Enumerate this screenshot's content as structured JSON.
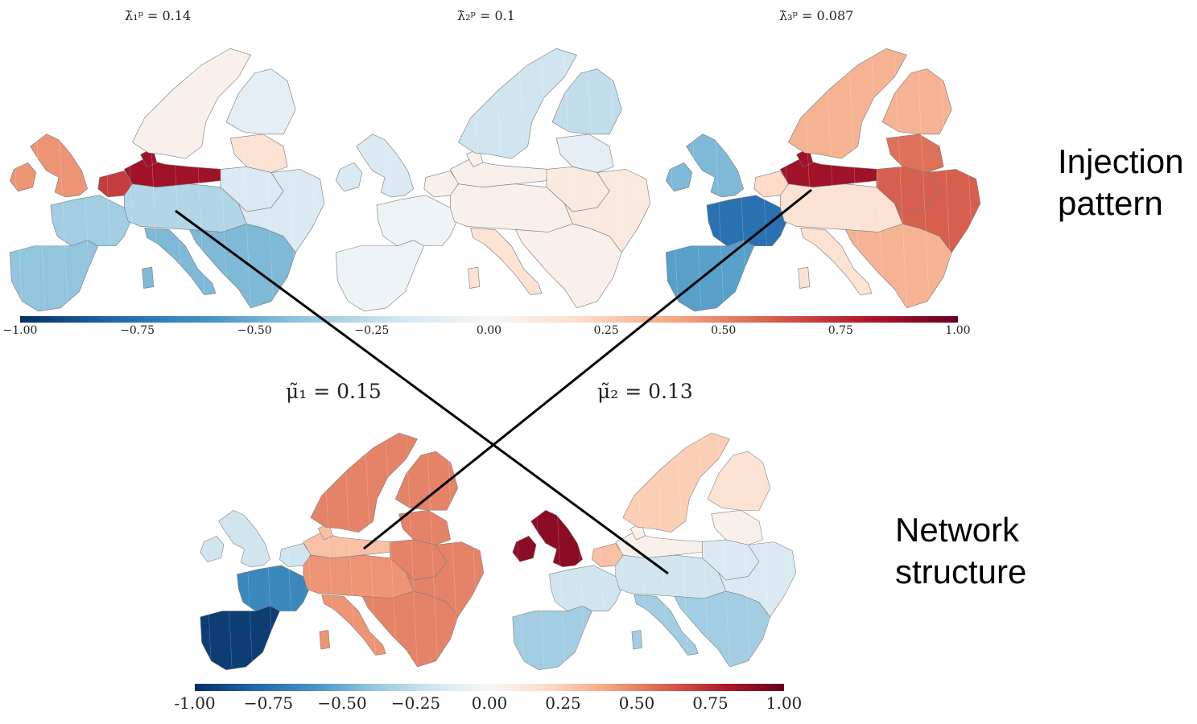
{
  "injection": {
    "title_1": "λ̃₁ᵖ = 0.14",
    "title_2": "λ̃₂ᵖ = 0.1",
    "title_3": "λ̃₃ᵖ = 0.087",
    "side_label_line1": "Injection",
    "side_label_line2": "pattern",
    "colorbar_ticks": [
      "−1.00",
      "−0.75",
      "−0.50",
      "−0.25",
      "0.00",
      "0.25",
      "0.50",
      "0.75",
      "1.00"
    ]
  },
  "network": {
    "title_1": "μ̃₁ = 0.15",
    "title_2": "μ̃₂ = 0.13",
    "side_label_line1": "Network",
    "side_label_line2": "structure",
    "colorbar_ticks": [
      "-1.00",
      "−0.75",
      "−0.50",
      "−0.25",
      "0.00",
      "0.25",
      "0.50",
      "0.75",
      "1.00"
    ]
  },
  "colorscale": {
    "min": -1.0,
    "max": 1.0,
    "stops": [
      "#053061",
      "#2166ac",
      "#4393c3",
      "#92c5de",
      "#d1e5f0",
      "#f7f7f7",
      "#fddbc7",
      "#f4a582",
      "#d6604d",
      "#b2182b",
      "#67001f"
    ]
  },
  "maps": [
    {
      "id": "lambda1",
      "region_values": {
        "iberia": -0.4,
        "france": -0.35,
        "britain": 0.45,
        "benelux": 0.7,
        "north_germany": 0.85,
        "central": -0.3,
        "italy": -0.45,
        "balkans": -0.45,
        "poland": -0.15,
        "scandinavia": 0.05,
        "finland": -0.1,
        "baltics": 0.15
      }
    },
    {
      "id": "lambda2",
      "region_values": {
        "iberia": -0.05,
        "france": -0.05,
        "britain": -0.15,
        "benelux": 0.05,
        "north_germany": 0.05,
        "central": 0.05,
        "italy": 0.15,
        "balkans": 0.05,
        "poland": 0.1,
        "scandinavia": -0.2,
        "finland": -0.25,
        "baltics": -0.1
      }
    },
    {
      "id": "lambda3",
      "region_values": {
        "iberia": -0.55,
        "france": -0.75,
        "britain": -0.45,
        "benelux": 0.2,
        "north_germany": 0.85,
        "central": 0.15,
        "italy": 0.15,
        "balkans": 0.35,
        "poland": 0.6,
        "scandinavia": 0.35,
        "finland": 0.35,
        "baltics": 0.55
      }
    },
    {
      "id": "mu1",
      "region_values": {
        "iberia": -0.95,
        "france": -0.65,
        "britain": -0.2,
        "benelux": -0.2,
        "north_germany": 0.3,
        "central": 0.45,
        "italy": 0.45,
        "balkans": 0.5,
        "poland": 0.5,
        "scandinavia": 0.5,
        "finland": 0.5,
        "baltics": 0.5
      }
    },
    {
      "id": "mu2",
      "region_values": {
        "iberia": -0.35,
        "france": -0.2,
        "britain": 0.9,
        "benelux": 0.3,
        "north_germany": 0.05,
        "central": -0.2,
        "italy": -0.35,
        "balkans": -0.35,
        "poland": -0.15,
        "scandinavia": 0.25,
        "finland": 0.15,
        "baltics": 0.05
      }
    }
  ]
}
